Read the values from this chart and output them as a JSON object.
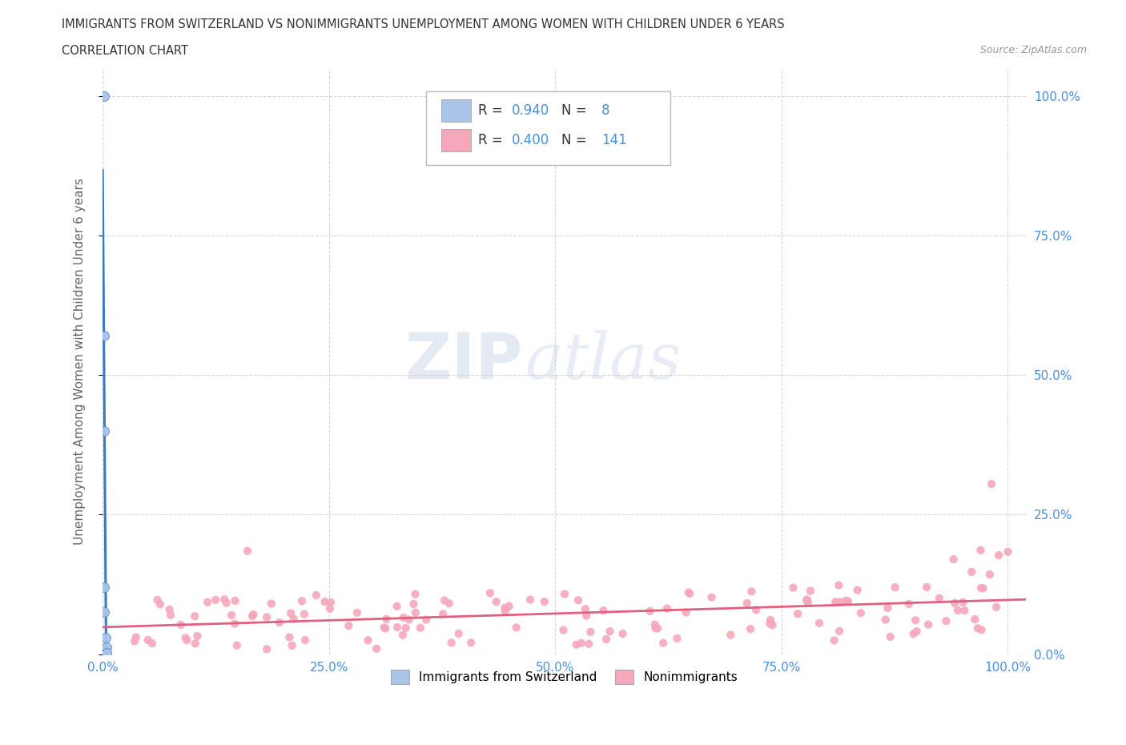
{
  "title_line1": "IMMIGRANTS FROM SWITZERLAND VS NONIMMIGRANTS UNEMPLOYMENT AMONG WOMEN WITH CHILDREN UNDER 6 YEARS",
  "title_line2": "CORRELATION CHART",
  "source_text": "Source: ZipAtlas.com",
  "ylabel": "Unemployment Among Women with Children Under 6 years",
  "watermark_zip": "ZIP",
  "watermark_atlas": "atlas",
  "R_blue": 0.94,
  "N_blue": 8,
  "R_pink": 0.4,
  "N_pink": 141,
  "blue_color": "#aac4e8",
  "blue_line_color": "#3a7abf",
  "pink_color": "#f5a8bc",
  "pink_line_color": "#e06080",
  "xlim": [
    0.0,
    1.02
  ],
  "ylim": [
    0.0,
    1.05
  ],
  "xticks": [
    0.0,
    0.25,
    0.5,
    0.75,
    1.0
  ],
  "yticks": [
    0.0,
    0.25,
    0.5,
    0.75,
    1.0
  ],
  "grid_color": "#cccccc",
  "bg_color": "#ffffff",
  "title_color": "#333333",
  "axis_label_color": "#666666",
  "tick_color": "#4a90d9",
  "legend_R_color": "#4a90d9",
  "legend_N_color": "#333333"
}
